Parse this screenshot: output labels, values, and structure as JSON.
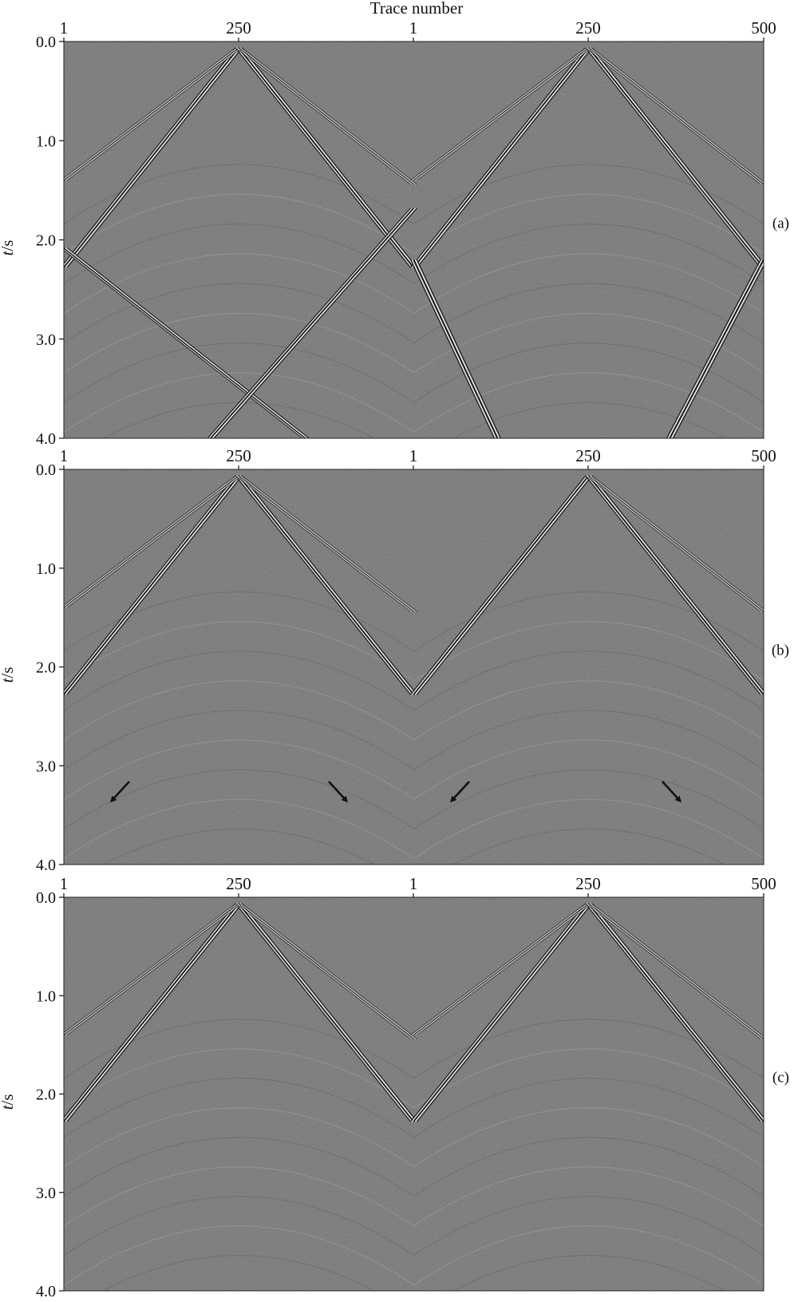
{
  "figure": {
    "x_title": "Trace number",
    "y_title_italic": "t",
    "y_title_unit": "/s",
    "panels": [
      {
        "label": "(a)",
        "top_ticks": [
          "1",
          "250",
          "1",
          "250",
          "500"
        ],
        "y_ticks": [
          "0.0",
          "1.0",
          "2.0",
          "3.0",
          "4.0"
        ],
        "arrows": []
      },
      {
        "label": "(b)",
        "top_ticks": [
          "1",
          "250",
          "1",
          "250",
          "500"
        ],
        "y_ticks": [
          "0.0",
          "1.0",
          "2.0",
          "3.0",
          "4.0"
        ],
        "arrows": [
          "down-left",
          "down-right",
          "down-left",
          "down-right"
        ]
      },
      {
        "label": "(c)",
        "top_ticks": [
          "1",
          "250",
          "1",
          "250",
          "500"
        ],
        "y_ticks": [
          "0.0",
          "1.0",
          "2.0",
          "3.0",
          "4.0"
        ],
        "arrows": []
      }
    ],
    "colors": {
      "background": "#7a7a7a",
      "event_bright": "#f2f2f2",
      "event_dark": "#151515"
    }
  }
}
